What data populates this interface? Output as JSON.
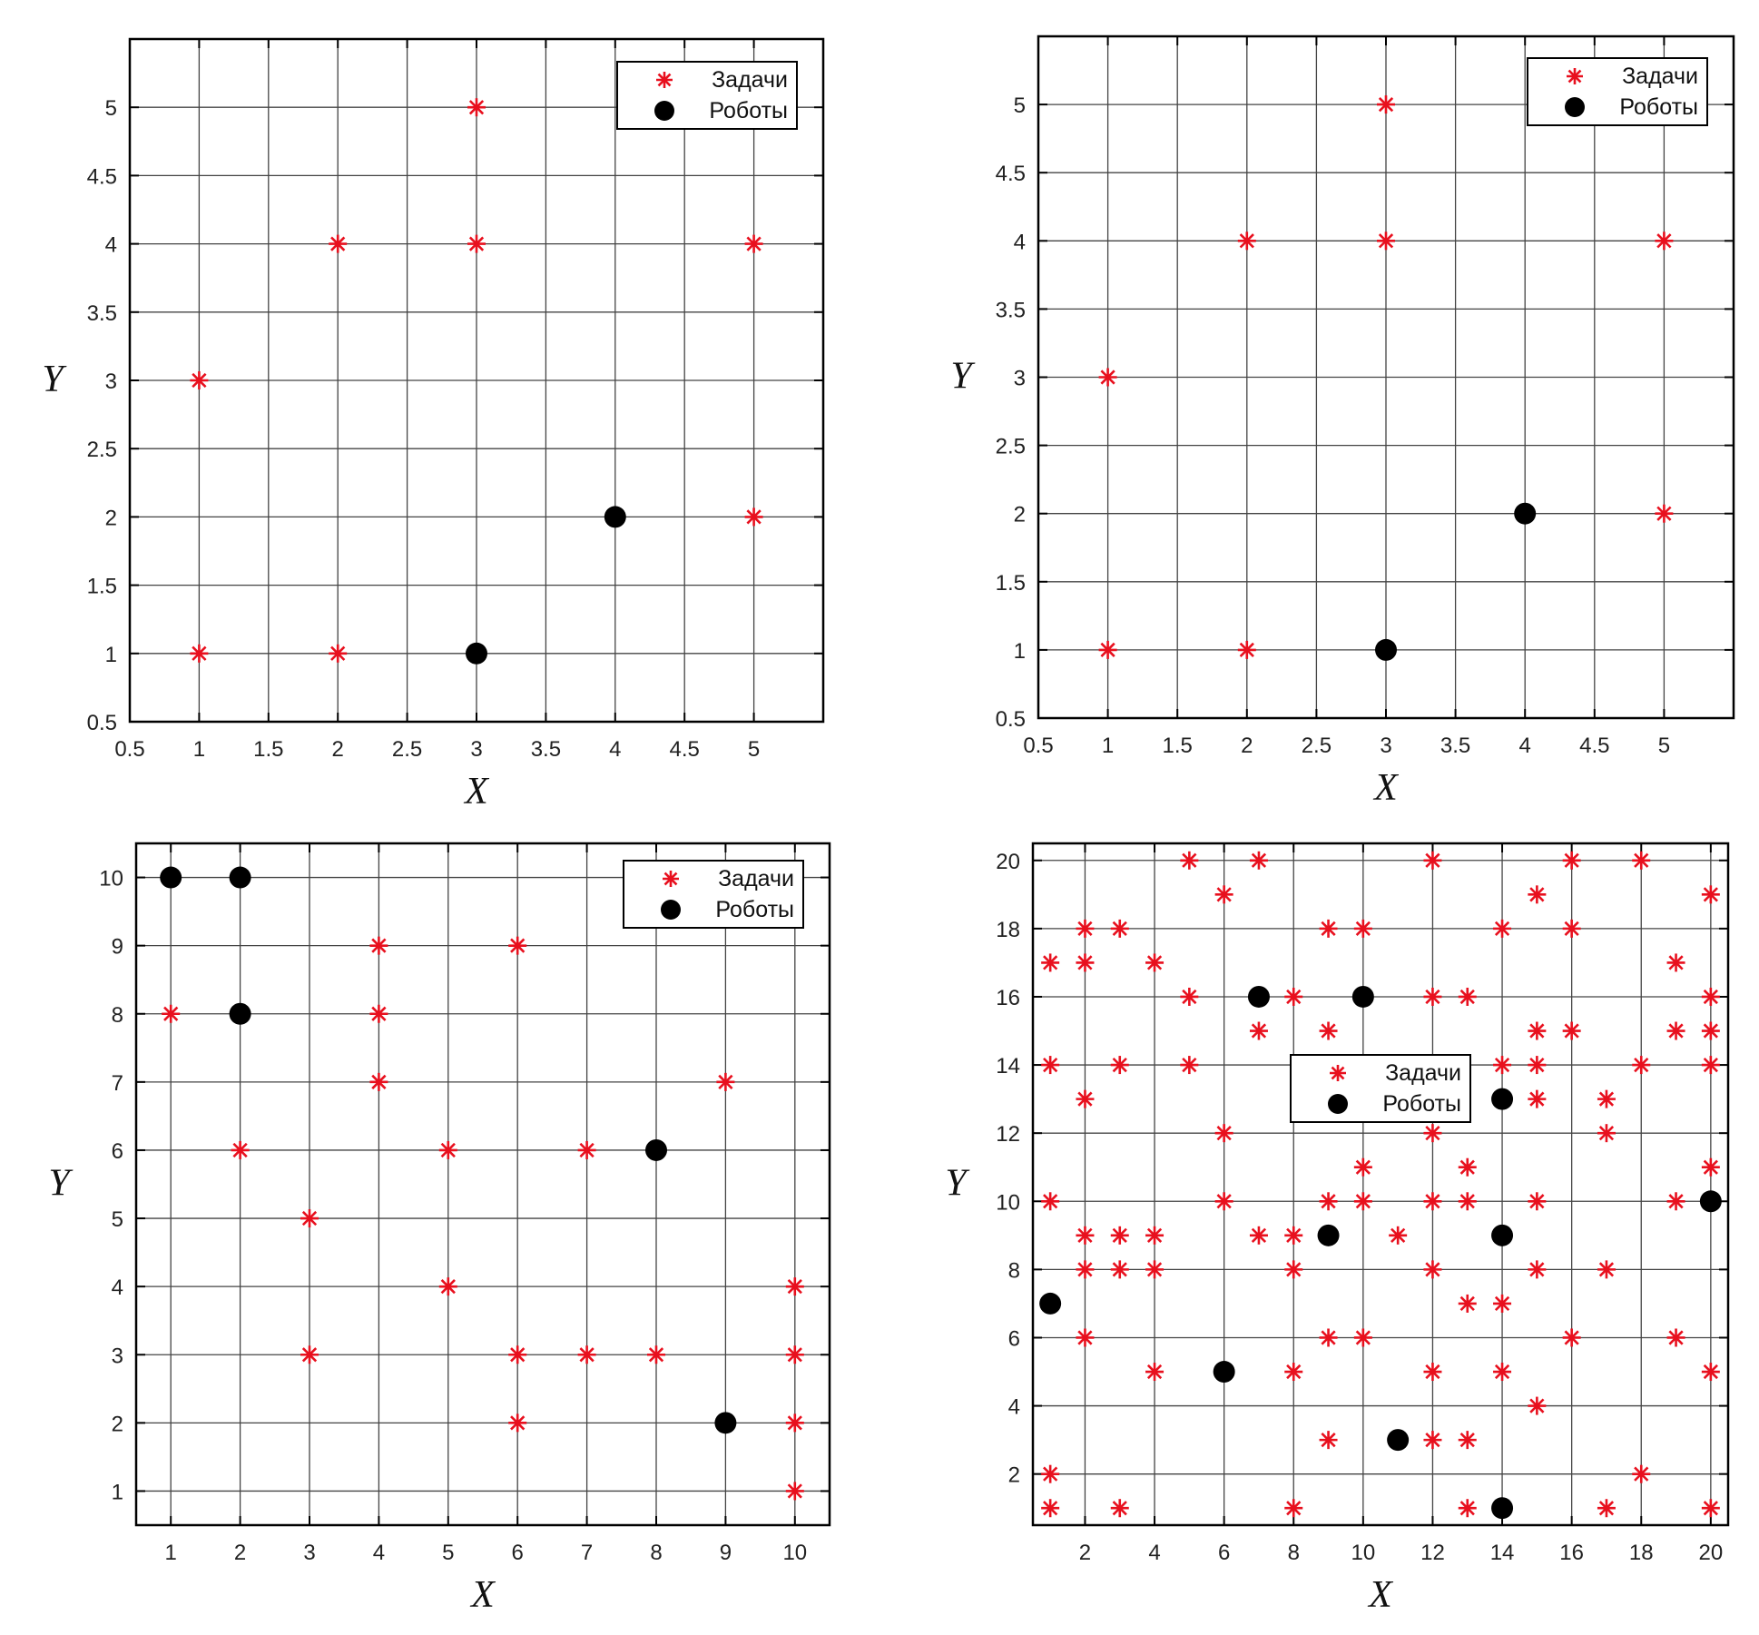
{
  "colors": {
    "task": "#e8101e",
    "robot": "#000000",
    "grid": "#444444"
  },
  "chart_data": [
    {
      "type": "scatter",
      "title": "",
      "xlabel": "X",
      "ylabel": "Y",
      "xlim": [
        0.5,
        5.5
      ],
      "ylim": [
        0.5,
        5.5
      ],
      "xticks": [
        "0.5",
        "1",
        "1.5",
        "2",
        "2.5",
        "3",
        "3.5",
        "4",
        "4.5",
        "5"
      ],
      "yticks": [
        "0.5",
        "1",
        "1.5",
        "2",
        "2.5",
        "3",
        "3.5",
        "4",
        "4.5",
        "5"
      ],
      "grid": true,
      "legend_position": "top-right",
      "series": [
        {
          "name": "Задачи",
          "marker": "asterisk",
          "points": [
            [
              3,
              5
            ],
            [
              2,
              4
            ],
            [
              3,
              4
            ],
            [
              5,
              4
            ],
            [
              1,
              3
            ],
            [
              5,
              2
            ],
            [
              1,
              1
            ],
            [
              2,
              1
            ]
          ]
        },
        {
          "name": "Роботы",
          "marker": "circle",
          "points": [
            [
              4,
              2
            ],
            [
              3,
              1
            ]
          ]
        }
      ]
    },
    {
      "type": "scatter",
      "title": "",
      "xlabel": "X",
      "ylabel": "Y",
      "xlim": [
        0.5,
        5.5
      ],
      "ylim": [
        0.5,
        5.5
      ],
      "xticks": [
        "0.5",
        "1",
        "1.5",
        "2",
        "2.5",
        "3",
        "3.5",
        "4",
        "4.5",
        "5"
      ],
      "yticks": [
        "0.5",
        "1",
        "1.5",
        "2",
        "2.5",
        "3",
        "3.5",
        "4",
        "4.5",
        "5"
      ],
      "grid": true,
      "legend_position": "top-right",
      "series": [
        {
          "name": "Задачи",
          "marker": "asterisk",
          "points": [
            [
              3,
              5
            ],
            [
              2,
              4
            ],
            [
              3,
              4
            ],
            [
              5,
              4
            ],
            [
              1,
              3
            ],
            [
              5,
              2
            ],
            [
              1,
              1
            ],
            [
              2,
              1
            ]
          ]
        },
        {
          "name": "Роботы",
          "marker": "circle",
          "points": [
            [
              4,
              2
            ],
            [
              3,
              1
            ]
          ]
        }
      ]
    },
    {
      "type": "scatter",
      "title": "",
      "xlabel": "X",
      "ylabel": "Y",
      "xlim": [
        0.5,
        10.5
      ],
      "ylim": [
        0.5,
        10.5
      ],
      "xticks": [
        "1",
        "2",
        "3",
        "4",
        "5",
        "6",
        "7",
        "8",
        "9",
        "10"
      ],
      "yticks": [
        "1",
        "2",
        "3",
        "4",
        "5",
        "6",
        "7",
        "8",
        "9",
        "10"
      ],
      "grid": true,
      "legend_position": "top-right",
      "series": [
        {
          "name": "Задачи",
          "marker": "asterisk",
          "points": [
            [
              4,
              9
            ],
            [
              6,
              9
            ],
            [
              1,
              8
            ],
            [
              4,
              8
            ],
            [
              4,
              7
            ],
            [
              9,
              7
            ],
            [
              2,
              6
            ],
            [
              5,
              6
            ],
            [
              7,
              6
            ],
            [
              3,
              5
            ],
            [
              5,
              4
            ],
            [
              10,
              4
            ],
            [
              3,
              3
            ],
            [
              6,
              3
            ],
            [
              7,
              3
            ],
            [
              8,
              3
            ],
            [
              10,
              3
            ],
            [
              6,
              2
            ],
            [
              10,
              2
            ],
            [
              10,
              1
            ]
          ]
        },
        {
          "name": "Роботы",
          "marker": "circle",
          "points": [
            [
              1,
              10
            ],
            [
              2,
              10
            ],
            [
              2,
              8
            ],
            [
              8,
              6
            ],
            [
              9,
              2
            ]
          ]
        }
      ]
    },
    {
      "type": "scatter",
      "title": "",
      "xlabel": "X",
      "ylabel": "Y",
      "xlim": [
        0.5,
        20.5
      ],
      "ylim": [
        0.5,
        20.5
      ],
      "xticks": [
        "2",
        "4",
        "6",
        "8",
        "10",
        "12",
        "14",
        "16",
        "18",
        "20"
      ],
      "yticks": [
        "2",
        "4",
        "6",
        "8",
        "10",
        "12",
        "14",
        "16",
        "18",
        "20"
      ],
      "grid": true,
      "legend_position": "center",
      "series": [
        {
          "name": "Задачи",
          "marker": "asterisk",
          "points": [
            [
              5,
              20
            ],
            [
              7,
              20
            ],
            [
              12,
              20
            ],
            [
              16,
              20
            ],
            [
              18,
              20
            ],
            [
              6,
              19
            ],
            [
              15,
              19
            ],
            [
              20,
              19
            ],
            [
              2,
              18
            ],
            [
              3,
              18
            ],
            [
              9,
              18
            ],
            [
              10,
              18
            ],
            [
              14,
              18
            ],
            [
              16,
              18
            ],
            [
              1,
              17
            ],
            [
              2,
              17
            ],
            [
              4,
              17
            ],
            [
              19,
              17
            ],
            [
              5,
              16
            ],
            [
              8,
              16
            ],
            [
              12,
              16
            ],
            [
              13,
              16
            ],
            [
              20,
              16
            ],
            [
              7,
              15
            ],
            [
              9,
              15
            ],
            [
              15,
              15
            ],
            [
              16,
              15
            ],
            [
              19,
              15
            ],
            [
              20,
              15
            ],
            [
              1,
              14
            ],
            [
              3,
              14
            ],
            [
              5,
              14
            ],
            [
              14,
              14
            ],
            [
              15,
              14
            ],
            [
              18,
              14
            ],
            [
              20,
              14
            ],
            [
              2,
              13
            ],
            [
              15,
              13
            ],
            [
              17,
              13
            ],
            [
              6,
              12
            ],
            [
              12,
              12
            ],
            [
              17,
              12
            ],
            [
              10,
              11
            ],
            [
              13,
              11
            ],
            [
              20,
              11
            ],
            [
              1,
              10
            ],
            [
              6,
              10
            ],
            [
              9,
              10
            ],
            [
              10,
              10
            ],
            [
              12,
              10
            ],
            [
              13,
              10
            ],
            [
              15,
              10
            ],
            [
              19,
              10
            ],
            [
              2,
              9
            ],
            [
              3,
              9
            ],
            [
              4,
              9
            ],
            [
              7,
              9
            ],
            [
              8,
              9
            ],
            [
              11,
              9
            ],
            [
              2,
              8
            ],
            [
              3,
              8
            ],
            [
              4,
              8
            ],
            [
              8,
              8
            ],
            [
              12,
              8
            ],
            [
              15,
              8
            ],
            [
              17,
              8
            ],
            [
              13,
              7
            ],
            [
              14,
              7
            ],
            [
              2,
              6
            ],
            [
              9,
              6
            ],
            [
              10,
              6
            ],
            [
              16,
              6
            ],
            [
              19,
              6
            ],
            [
              4,
              5
            ],
            [
              8,
              5
            ],
            [
              12,
              5
            ],
            [
              14,
              5
            ],
            [
              20,
              5
            ],
            [
              15,
              4
            ],
            [
              9,
              3
            ],
            [
              12,
              3
            ],
            [
              13,
              3
            ],
            [
              1,
              2
            ],
            [
              18,
              2
            ],
            [
              1,
              1
            ],
            [
              3,
              1
            ],
            [
              8,
              1
            ],
            [
              13,
              1
            ],
            [
              17,
              1
            ],
            [
              20,
              1
            ]
          ]
        },
        {
          "name": "Роботы",
          "marker": "circle",
          "points": [
            [
              7,
              16
            ],
            [
              10,
              16
            ],
            [
              14,
              13
            ],
            [
              9,
              9
            ],
            [
              14,
              9
            ],
            [
              20,
              10
            ],
            [
              1,
              7
            ],
            [
              6,
              5
            ],
            [
              11,
              3
            ],
            [
              14,
              1
            ]
          ]
        }
      ]
    }
  ]
}
